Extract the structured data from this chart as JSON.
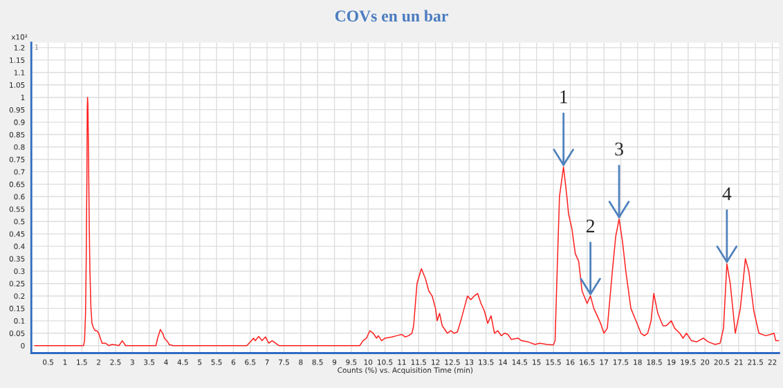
{
  "chart_data": {
    "type": "line",
    "title": "COVs en un bar",
    "xlabel": "Counts (%) vs. Acquisition Time (min)",
    "annotations": [
      "x10²",
      "1",
      {
        "text": "1",
        "x": 15.8,
        "y": 0.72
      },
      {
        "text": "2",
        "x": 16.6,
        "y": 0.2
      },
      {
        "text": "3",
        "x": 17.45,
        "y": 0.51
      },
      {
        "text": "4",
        "x": 20.65,
        "y": 0.33
      }
    ],
    "xlim": [
      0,
      22.2
    ],
    "ylim": [
      -0.03,
      1.22
    ],
    "xticks": [
      0.5,
      1,
      1.5,
      2,
      2.5,
      3,
      3.5,
      4,
      4.5,
      5,
      5.5,
      6,
      6.5,
      7,
      7.5,
      8,
      8.5,
      9,
      9.5,
      10,
      10.5,
      11,
      11.5,
      12,
      12.5,
      13,
      13.5,
      14,
      14.5,
      15,
      15.5,
      16,
      16.5,
      17,
      17.5,
      18,
      18.5,
      19,
      19.5,
      20,
      20.5,
      21,
      21.5,
      22
    ],
    "yticks": [
      0,
      0.05,
      0.1,
      0.15,
      0.2,
      0.25,
      0.3,
      0.35,
      0.4,
      0.45,
      0.5,
      0.55,
      0.6,
      0.65,
      0.7,
      0.75,
      0.8,
      0.85,
      0.9,
      0.95,
      1,
      1.05,
      1.1,
      1.15,
      1.2
    ],
    "grid": true,
    "marker": "none",
    "line_style": "solid",
    "series": [
      {
        "color": "#ff2020",
        "x": [
          0.1,
          1.55,
          1.58,
          1.61,
          1.63,
          1.65,
          1.66,
          1.67,
          1.68,
          1.7,
          1.72,
          1.74,
          1.77,
          1.8,
          1.85,
          1.9,
          1.95,
          2.0,
          2.05,
          2.1,
          2.2,
          2.3,
          2.4,
          2.5,
          2.6,
          2.7,
          2.8,
          3.0,
          3.7,
          3.75,
          3.83,
          3.9,
          3.95,
          4.05,
          4.1,
          4.15,
          4.2,
          6.4,
          6.5,
          6.6,
          6.65,
          6.75,
          6.85,
          6.95,
          7.05,
          7.15,
          7.25,
          7.35,
          9.75,
          9.85,
          9.95,
          10.05,
          10.15,
          10.25,
          10.3,
          10.4,
          10.5,
          10.7,
          10.85,
          11.0,
          11.1,
          11.2,
          11.3,
          11.35,
          11.45,
          11.58,
          11.7,
          11.8,
          11.9,
          12.0,
          12.05,
          12.12,
          12.2,
          12.35,
          12.45,
          12.55,
          12.65,
          12.75,
          12.85,
          12.95,
          13.05,
          13.15,
          13.25,
          13.35,
          13.45,
          13.55,
          13.65,
          13.75,
          13.85,
          13.95,
          14.05,
          14.15,
          14.25,
          14.45,
          14.55,
          14.75,
          14.95,
          15.1,
          15.3,
          15.5,
          15.55,
          15.6,
          15.68,
          15.8,
          15.9,
          15.95,
          16.05,
          16.15,
          16.25,
          16.35,
          16.5,
          16.6,
          16.7,
          16.9,
          17.0,
          17.1,
          17.25,
          17.35,
          17.45,
          17.55,
          17.65,
          17.8,
          17.95,
          18.1,
          18.2,
          18.3,
          18.4,
          18.48,
          18.6,
          18.75,
          18.85,
          19.0,
          19.1,
          19.25,
          19.35,
          19.45,
          19.6,
          19.75,
          19.95,
          20.1,
          20.3,
          20.45,
          20.55,
          20.65,
          20.75,
          20.9,
          21.05,
          21.2,
          21.3,
          21.45,
          21.6,
          21.8,
          21.95,
          22.05,
          22.1,
          22.2
        ],
        "values": [
          0,
          0,
          0.02,
          0.13,
          0.35,
          0.68,
          0.95,
          1.0,
          0.97,
          0.75,
          0.48,
          0.3,
          0.15,
          0.09,
          0.07,
          0.06,
          0.06,
          0.05,
          0.03,
          0.01,
          0.01,
          0,
          0.005,
          0.003,
          0,
          0.02,
          0,
          0,
          0,
          0.03,
          0.065,
          0.05,
          0.03,
          0.015,
          0.003,
          0.003,
          0,
          0,
          0.015,
          0.03,
          0.02,
          0.037,
          0.02,
          0.035,
          0.01,
          0.02,
          0.01,
          0,
          0,
          0.02,
          0.03,
          0.06,
          0.05,
          0.03,
          0.04,
          0.02,
          0.03,
          0.035,
          0.04,
          0.045,
          0.035,
          0.04,
          0.05,
          0.08,
          0.25,
          0.31,
          0.27,
          0.22,
          0.2,
          0.15,
          0.1,
          0.13,
          0.08,
          0.05,
          0.06,
          0.05,
          0.055,
          0.1,
          0.15,
          0.2,
          0.185,
          0.2,
          0.21,
          0.17,
          0.14,
          0.09,
          0.12,
          0.05,
          0.06,
          0.04,
          0.05,
          0.045,
          0.025,
          0.03,
          0.02,
          0.015,
          0.005,
          0.01,
          0.005,
          0.003,
          0.02,
          0.25,
          0.6,
          0.72,
          0.6,
          0.53,
          0.47,
          0.37,
          0.34,
          0.22,
          0.17,
          0.2,
          0.15,
          0.09,
          0.05,
          0.07,
          0.3,
          0.44,
          0.51,
          0.42,
          0.3,
          0.15,
          0.1,
          0.05,
          0.04,
          0.05,
          0.1,
          0.21,
          0.13,
          0.08,
          0.08,
          0.1,
          0.07,
          0.05,
          0.03,
          0.05,
          0.02,
          0.015,
          0.03,
          0.015,
          0.005,
          0.01,
          0.07,
          0.33,
          0.25,
          0.05,
          0.15,
          0.35,
          0.3,
          0.14,
          0.05,
          0.04,
          0.045,
          0.05,
          0.02,
          0.02
        ]
      }
    ]
  }
}
